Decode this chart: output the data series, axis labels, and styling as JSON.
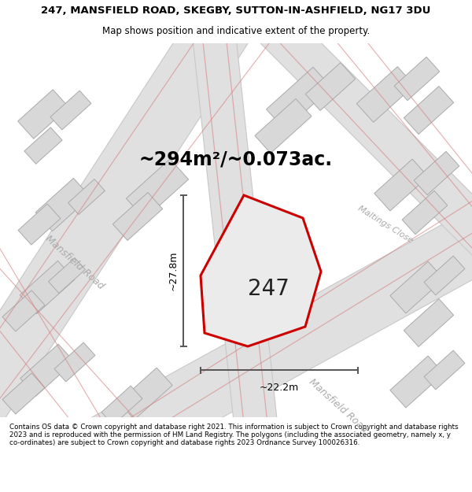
{
  "title_line1": "247, MANSFIELD ROAD, SKEGBY, SUTTON-IN-ASHFIELD, NG17 3DU",
  "title_line2": "Map shows position and indicative extent of the property.",
  "area_text": "~294m²/~0.073ac.",
  "property_number": "247",
  "dim_height": "~27.8m",
  "dim_width": "~22.2m",
  "footer_text": "Contains OS data © Crown copyright and database right 2021. This information is subject to Crown copyright and database rights 2023 and is reproduced with the permission of HM Land Registry. The polygons (including the associated geometry, namely x, y co-ordinates) are subject to Crown copyright and database rights 2023 Ordnance Survey 100026316.",
  "map_bg": "#f2f2f2",
  "road_gray": "#e0e0e0",
  "road_edge": "#c8c8c8",
  "building_fill": "#d8d8d8",
  "building_edge": "#aaaaaa",
  "pink_line": "#d48080",
  "property_fill": "#e8e8e8",
  "property_stroke": "#dd0000",
  "dim_color": "#555555",
  "label_color": "#aaaaaa",
  "title_color": "#111111"
}
